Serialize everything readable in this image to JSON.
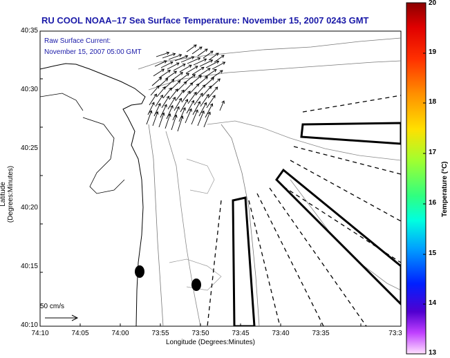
{
  "map": {
    "title": "RU COOL  NOAA–17  Sea Surface Temperature:  November 15, 2007 0243 GMT",
    "current_label": "Raw Surface Current:",
    "current_time": "November 15, 2007 05:00 GMT",
    "x_axis_label": "Longitude (Degrees:Minutes)",
    "y_axis_label": "Latitude (Degrees:Minutes)",
    "scale_label": "50 cm/s",
    "y_ticks": [
      "40:35",
      "40:30",
      "40:25",
      "40:20",
      "40:15",
      "40:10"
    ],
    "x_ticks": [
      "74:10",
      "74:05",
      "74:00",
      "73:55",
      "73:50",
      "73:45",
      "73:40",
      "73:35",
      "73:3"
    ],
    "colorbar": {
      "title": "Temperature (°C)",
      "ticks": [
        "20",
        "19",
        "18",
        "17",
        "16",
        "15",
        "14",
        "13"
      ],
      "colors": [
        "#8b0000",
        "#ff0000",
        "#ff8000",
        "#ffff00",
        "#80ff40",
        "#00ffa0",
        "#00ffff",
        "#0080ff",
        "#0000ff",
        "#6000c0",
        "#c040ff",
        "#ffe0ff"
      ]
    }
  }
}
